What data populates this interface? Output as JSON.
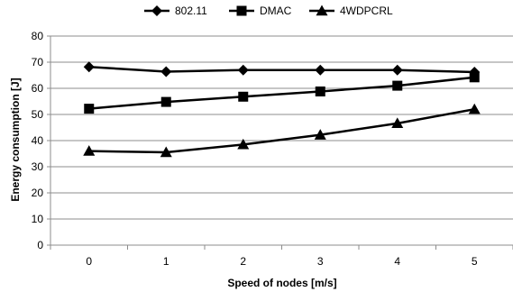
{
  "chart_data": {
    "type": "line",
    "x": [
      0,
      1,
      2,
      3,
      4,
      5
    ],
    "series": [
      {
        "name": "802.11",
        "marker": "diamond",
        "values": [
          68.2,
          66.4,
          67.0,
          67.0,
          67.0,
          66.2
        ]
      },
      {
        "name": "DMAC",
        "marker": "square",
        "values": [
          52.2,
          54.8,
          56.8,
          58.8,
          61.0,
          64.2
        ]
      },
      {
        "name": "4WDPCRL",
        "marker": "triangle",
        "values": [
          36.0,
          35.5,
          38.5,
          42.2,
          46.6,
          52.0
        ]
      }
    ],
    "xlabel": "Speed of nodes [m/s]",
    "ylabel": "Energy consumption [J]",
    "ylim": [
      0,
      80
    ],
    "yticks": [
      0,
      10,
      20,
      30,
      40,
      50,
      60,
      70,
      80
    ],
    "xticks": [
      0,
      1,
      2,
      3,
      4,
      5
    ],
    "grid": "horizontal",
    "legend_position": "top",
    "line_color": "#000000"
  }
}
